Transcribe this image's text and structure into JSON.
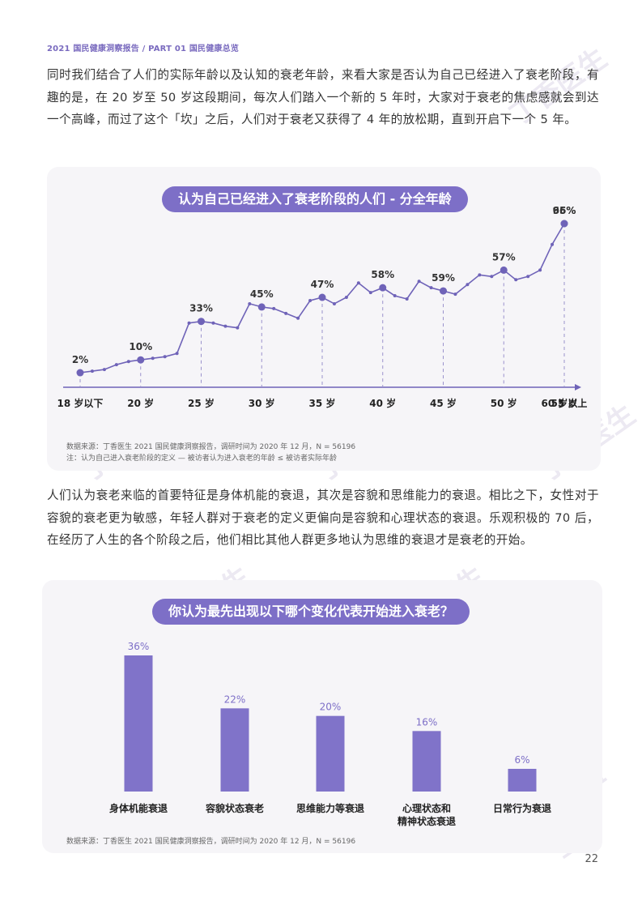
{
  "header": "2021 国民健康洞察报告 / PART 01 国民健康总览",
  "paragraph1": "同时我们结合了人们的实际年龄以及认知的衰老年龄，来看大家是否认为自己已经进入了衰老阶段，有趣的是，在 20 岁至 50 岁这段期间，每次人们踏入一个新的 5 年时，大家对于衰老的焦虑感就会到达一个高峰，而过了这个「坎」之后，人们对于衰老又获得了 4 年的放松期，直到开启下一个 5 年。",
  "paragraph2": "人们认为衰老来临的首要特征是身体机能的衰退，其次是容貌和思维能力的衰退。相比之下，女性对于容貌的衰老更为敏感，年轻人群对于衰老的定义更偏向是容貌和心理状态的衰退。乐观积极的 70 后，在经历了人生的各个阶段之后，他们相比其他人群更多地认为思维的衰退才是衰老的开始。",
  "watermark": "丁香医生",
  "page_number": "22",
  "colors": {
    "accent": "#7d6fc7",
    "line": "#6f63b8",
    "bar": "#8073c9",
    "card": "#f6f5f8"
  },
  "chart_data": [
    {
      "type": "line",
      "title": "认为自己已经进入了衰老阶段的人们 - 分全年龄",
      "x_ticks": [
        "18 岁以下",
        "20 岁",
        "25 岁",
        "30 岁",
        "35 岁",
        "40 岁",
        "45 岁",
        "50 岁",
        "55 岁",
        "60 岁以上"
      ],
      "labeled_points": [
        {
          "x": "18 岁以下",
          "y": 2,
          "label": "2%"
        },
        {
          "x": "20 岁",
          "y": 10,
          "label": "10%"
        },
        {
          "x": "25 岁",
          "y": 33,
          "label": "33%"
        },
        {
          "x": "30 岁",
          "y": 45,
          "label": "45%"
        },
        {
          "x": "35 岁",
          "y": 47,
          "label": "47%"
        },
        {
          "x": "40 岁",
          "y": 58,
          "label": "58%"
        },
        {
          "x": "45 岁",
          "y": 59,
          "label": "59%"
        },
        {
          "x": "50 岁",
          "y": 57,
          "label": "57%"
        },
        {
          "x": "55 岁",
          "y": 66,
          "label": "66%"
        },
        {
          "x": "60 岁以上",
          "y": 95,
          "label": "95%"
        }
      ],
      "values": [
        2,
        3,
        4,
        7,
        9,
        10,
        11,
        12,
        14,
        33,
        34,
        33,
        31,
        30,
        45,
        43,
        42,
        39,
        36,
        47,
        49,
        45,
        49,
        58,
        52,
        55,
        50,
        48,
        59,
        55,
        53,
        51,
        57,
        63,
        62,
        66,
        60,
        62,
        66,
        82,
        95
      ],
      "ylim": [
        0,
        100
      ],
      "source_lines": [
        "数据来源：丁香医生 2021 国民健康洞察报告，调研时间为 2020 年 12 月，N = 56196",
        "注：认为自己进入衰老阶段的定义 — 被访者认为进入衰老的年龄 ≤ 被访者实际年龄"
      ]
    },
    {
      "type": "bar",
      "title": "你认为最先出现以下哪个变化代表开始进入衰老？",
      "categories": [
        [
          "身体机能衰退"
        ],
        [
          "容貌状态衰老"
        ],
        [
          "思维能力等衰退"
        ],
        [
          "心理状态和",
          "精神状态衰退"
        ],
        [
          "日常行为衰退"
        ]
      ],
      "values": [
        36,
        22,
        20,
        16,
        6
      ],
      "labels": [
        "36%",
        "22%",
        "20%",
        "16%",
        "6%"
      ],
      "ylim": [
        0,
        36
      ],
      "source": "数据来源：丁香医生 2021 国民健康洞察报告，调研时间为 2020 年 12 月，N = 56196"
    }
  ]
}
